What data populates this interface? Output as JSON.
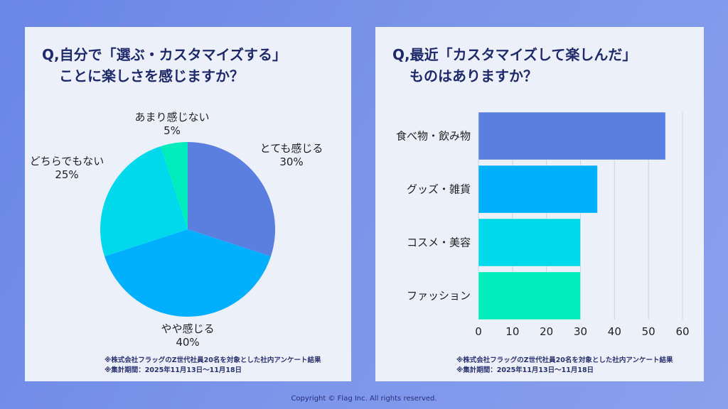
{
  "copyright": "Copyright © Flag Inc. All rights reserved.",
  "chart_data": [
    {
      "type": "pie",
      "title_line1": "Q,自分で「選ぶ・カスタマイズする」",
      "title_line2": "ことに楽しさを感じますか？",
      "slices": [
        {
          "label": "とても感じる",
          "value": 30,
          "display": "30%",
          "color": "#5b7fe0"
        },
        {
          "label": "やや感じる",
          "value": 40,
          "display": "40%",
          "color": "#00b0ff"
        },
        {
          "label": "どちらでもない",
          "value": 25,
          "display": "25%",
          "color": "#00d8ec"
        },
        {
          "label": "あまり感じない",
          "value": 5,
          "display": "5%",
          "color": "#00ecbb"
        }
      ],
      "start": "top",
      "direction": "clockwise",
      "notes": [
        "※株式会社フラッグのZ世代社員20名を対象とした社内アンケート結果",
        "※集計期間：2025年11月13日〜11月18日"
      ]
    },
    {
      "type": "bar",
      "orientation": "horizontal",
      "title_line1": "Q,最近「カスタマイズして楽しんだ」",
      "title_line2": "ものはありますか？",
      "categories": [
        "食べ物・飲み物",
        "グッズ・雑貨",
        "コスメ・美容",
        "ファッション"
      ],
      "values": [
        55,
        35,
        30,
        30
      ],
      "colors": [
        "#5b7fe0",
        "#00b0ff",
        "#00d8ec",
        "#00ecbb"
      ],
      "xlim": [
        0,
        60
      ],
      "xticks": [
        "0",
        "10",
        "20",
        "30",
        "40",
        "50",
        "60"
      ],
      "grid": true,
      "notes": [
        "※株式会社フラッグのZ世代社員20名を対象とした社内アンケート結果",
        "※集計期間：2025年11月13日〜11月18日"
      ]
    }
  ]
}
